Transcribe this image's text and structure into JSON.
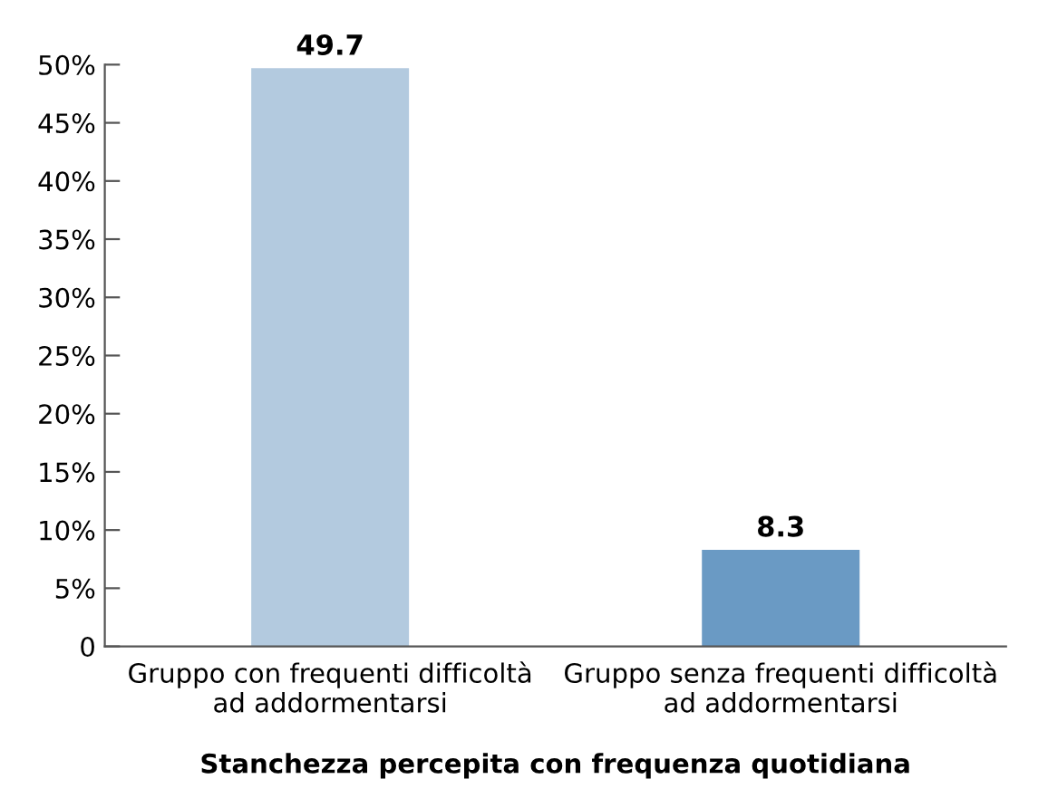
{
  "chart_data": {
    "type": "bar",
    "xlabel": "Stanchezza percepita con frequenza quotidiana",
    "categories": [
      "Gruppo con frequenti difficoltà\nad addormentarsi",
      "Gruppo senza frequenti difficoltà\nad addormentarsi"
    ],
    "values": [
      49.7,
      8.3
    ],
    "colors": [
      "#b3cadf",
      "#6a9ac4"
    ],
    "ylim": [
      0,
      50
    ],
    "yticks": [
      {
        "value": 0,
        "label": "0"
      },
      {
        "value": 5,
        "label": "5%"
      },
      {
        "value": 10,
        "label": "10%"
      },
      {
        "value": 15,
        "label": "15%"
      },
      {
        "value": 20,
        "label": "20%"
      },
      {
        "value": 25,
        "label": "25%"
      },
      {
        "value": 30,
        "label": "30%"
      },
      {
        "value": 35,
        "label": "35%"
      },
      {
        "value": 40,
        "label": "40%"
      },
      {
        "value": 45,
        "label": "45%"
      },
      {
        "value": 50,
        "label": "50%"
      }
    ],
    "data_labels": true,
    "grid": false,
    "legend": false
  }
}
